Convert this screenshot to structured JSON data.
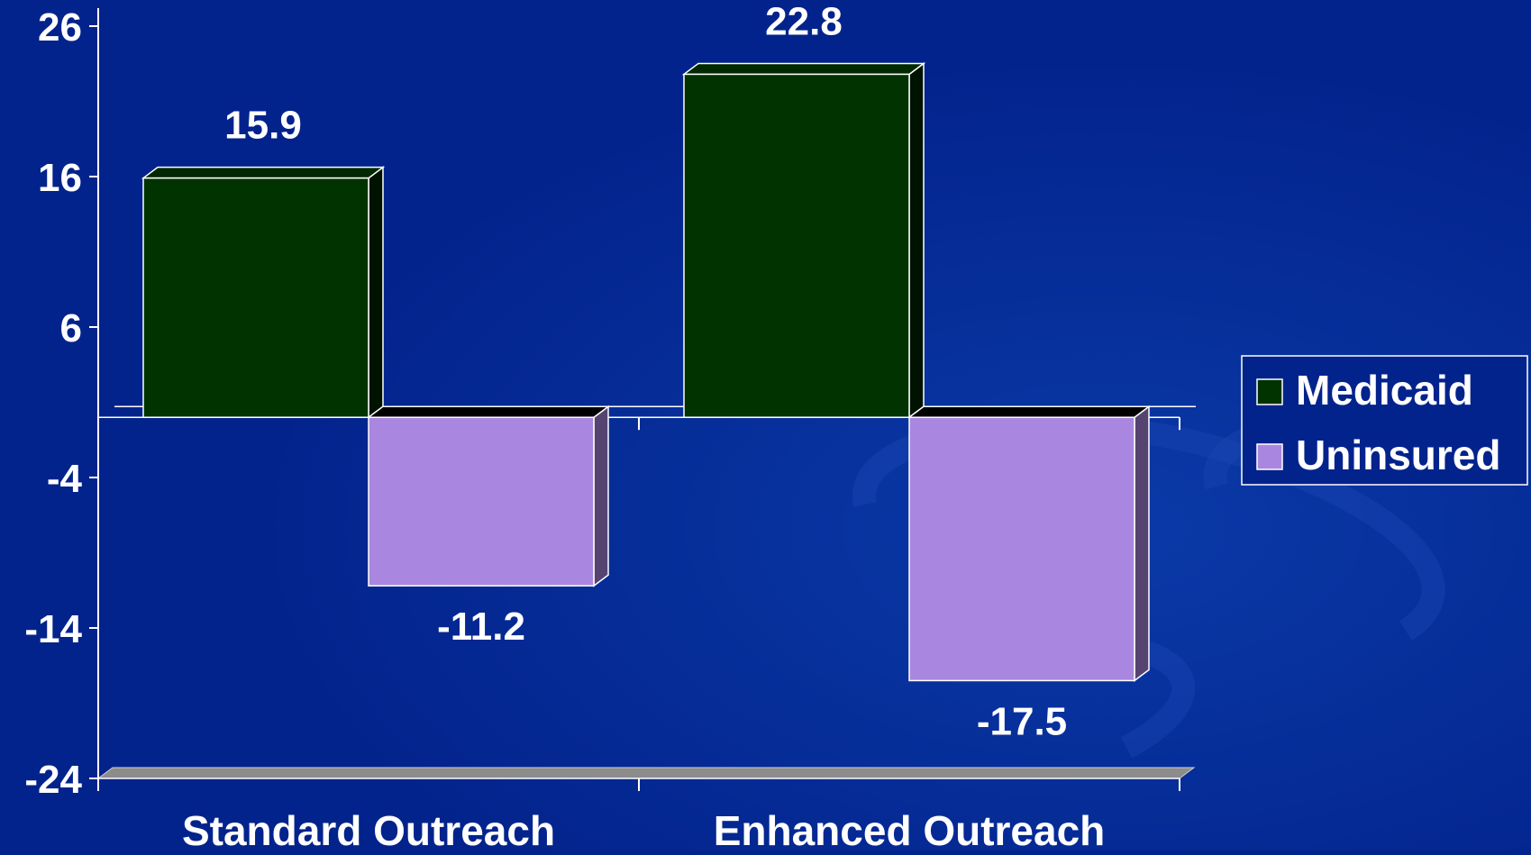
{
  "chart_data": {
    "type": "bar",
    "categories": [
      "Standard Outreach",
      "Enhanced Outreach"
    ],
    "series": [
      {
        "name": "Medicaid",
        "values": [
          15.9,
          22.8
        ],
        "color": "#013300"
      },
      {
        "name": "Uninsured",
        "values": [
          -11.2,
          -17.5
        ],
        "color": "#a987e0"
      }
    ],
    "data_labels": [
      [
        "15.9",
        "22.8"
      ],
      [
        "-11.2",
        "-17.5"
      ]
    ],
    "yticks": [
      26,
      16,
      6,
      -4,
      -14,
      -24
    ],
    "ylim": [
      -24,
      26
    ],
    "title": "",
    "xlabel": "",
    "ylabel": "",
    "legend_position": "right",
    "grid": false,
    "three_d": true,
    "colors": {
      "background": "#03238c",
      "text": "#ffffff",
      "axis": "#ffffff",
      "floor": "#8c8c8c"
    }
  }
}
